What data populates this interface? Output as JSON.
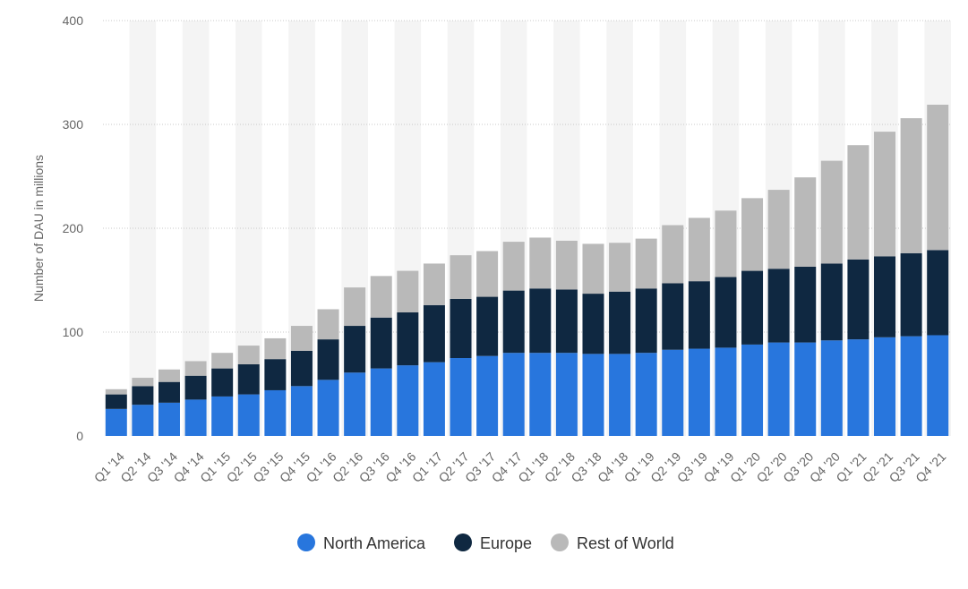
{
  "chart_data": {
    "type": "bar",
    "stacked": true,
    "title": "",
    "xlabel": "",
    "ylabel": "Number of DAU in millions",
    "ylim": [
      0,
      400
    ],
    "yticks": [
      0,
      100,
      200,
      300,
      400
    ],
    "grid": true,
    "legend_position": "bottom",
    "categories": [
      "Q1 '14",
      "Q2 '14",
      "Q3 '14",
      "Q4 '14",
      "Q1 '15",
      "Q2 '15",
      "Q3 '15",
      "Q4 '15",
      "Q1 '16",
      "Q2 '16",
      "Q3 '16",
      "Q4 '16",
      "Q1 '17",
      "Q2 '17",
      "Q3 '17",
      "Q4 '17",
      "Q1 '18",
      "Q2 '18",
      "Q3 '18",
      "Q4 '18",
      "Q1 '19",
      "Q2 '19",
      "Q3 '19",
      "Q4 '19",
      "Q1 '20",
      "Q2 '20",
      "Q3 '20",
      "Q4 '20",
      "Q1 '21",
      "Q2 '21",
      "Q3 '21",
      "Q4 '21"
    ],
    "series": [
      {
        "name": "North America",
        "color": "#2876dd",
        "values": [
          26,
          30,
          32,
          35,
          38,
          40,
          44,
          48,
          54,
          61,
          65,
          68,
          71,
          75,
          77,
          80,
          80,
          80,
          79,
          79,
          80,
          83,
          84,
          85,
          88,
          90,
          90,
          92,
          93,
          95,
          96,
          97
        ]
      },
      {
        "name": "Europe",
        "color": "#0f2841",
        "values": [
          14,
          18,
          20,
          23,
          27,
          29,
          30,
          34,
          39,
          45,
          49,
          51,
          55,
          57,
          57,
          60,
          62,
          61,
          58,
          60,
          62,
          64,
          65,
          68,
          71,
          71,
          73,
          74,
          77,
          78,
          80,
          82
        ]
      },
      {
        "name": "Rest of World",
        "color": "#b9b9b9",
        "values": [
          5,
          8,
          12,
          14,
          15,
          18,
          20,
          24,
          29,
          37,
          40,
          40,
          40,
          42,
          44,
          47,
          49,
          47,
          48,
          47,
          48,
          56,
          61,
          64,
          70,
          76,
          86,
          99,
          110,
          120,
          130,
          140
        ]
      }
    ]
  }
}
